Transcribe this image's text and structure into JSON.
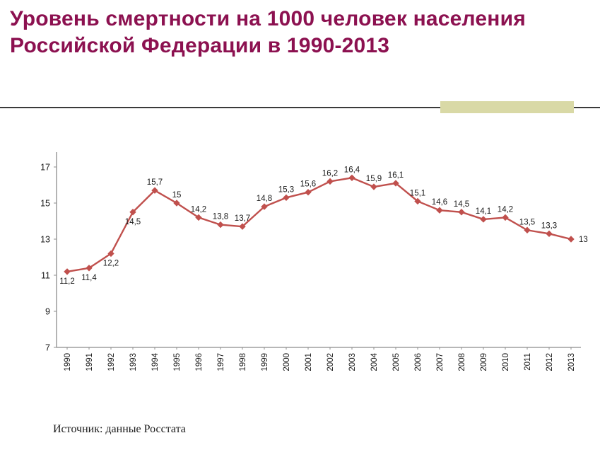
{
  "slide": {
    "title": "Уровень смертности на 1000 человек населения Российской Федерации в 1990-2013",
    "title_color": "#8C1150",
    "divider_color": "#3a3a3a",
    "tab_color": "#D9D9A6",
    "source": "Источник: данные Росстата"
  },
  "chart_data": {
    "type": "line",
    "title": "",
    "xlabel": "",
    "ylabel": "",
    "categories": [
      "1990",
      "1991",
      "1992",
      "1993",
      "1994",
      "1995",
      "1996",
      "1997",
      "1998",
      "1999",
      "2000",
      "2001",
      "2002",
      "2003",
      "2004",
      "2005",
      "2006",
      "2007",
      "2008",
      "2009",
      "2010",
      "2011",
      "2012",
      "2013"
    ],
    "values": [
      11.2,
      11.4,
      12.2,
      14.5,
      15.7,
      15,
      14.2,
      13.8,
      13.7,
      14.8,
      15.3,
      15.6,
      16.2,
      16.4,
      15.9,
      16.1,
      15.1,
      14.6,
      14.5,
      14.1,
      14.2,
      13.5,
      13.3,
      13
    ],
    "point_labels": [
      "11,2",
      "11,4",
      "12,2",
      "14,5",
      "15,7",
      "15",
      "14,2",
      "13,8",
      "13,7",
      "14,8",
      "15,3",
      "15,6",
      "16,2",
      "16,4",
      "15,9",
      "16,1",
      "15,1",
      "14,6",
      "14,5",
      "14,1",
      "14,2",
      "13,5",
      "13,3",
      "13"
    ],
    "label_position_overrides": {
      "0": "below",
      "1": "below",
      "2": "below",
      "3": "below",
      "23": "right"
    },
    "series_color": "#C0504D",
    "axis_color": "#8c8c8c",
    "label_color": "#1a1a1a",
    "ylim": [
      7,
      17
    ],
    "yticks": [
      7,
      9,
      11,
      13,
      15,
      17
    ],
    "grid": false,
    "legend": "none"
  }
}
